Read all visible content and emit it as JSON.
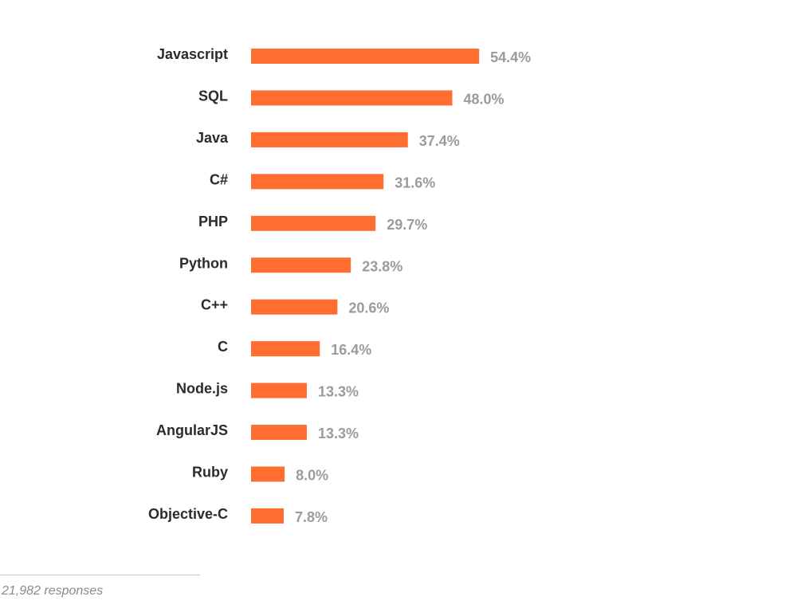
{
  "chart_data": {
    "type": "bar",
    "orientation": "horizontal",
    "categories": [
      "Javascript",
      "SQL",
      "Java",
      "C#",
      "PHP",
      "Python",
      "C++",
      "C",
      "Node.js",
      "AngularJS",
      "Ruby",
      "Objective-C"
    ],
    "values": [
      54.4,
      48.0,
      37.4,
      31.6,
      29.7,
      23.8,
      20.6,
      16.4,
      13.3,
      13.3,
      8.0,
      7.8
    ],
    "value_labels": [
      "54.4%",
      "48.0%",
      "37.4%",
      "31.6%",
      "29.7%",
      "23.8%",
      "20.6%",
      "16.4%",
      "13.3%",
      "13.3%",
      "8.0%",
      "7.8%"
    ],
    "xlim": [
      0,
      100
    ],
    "grid": false,
    "legend": "none"
  },
  "colors": {
    "bar": "#ff6d31",
    "category_text": "#2b2b2b",
    "value_text": "#9b9b9b"
  },
  "footer": {
    "note": "21,982 responses"
  }
}
